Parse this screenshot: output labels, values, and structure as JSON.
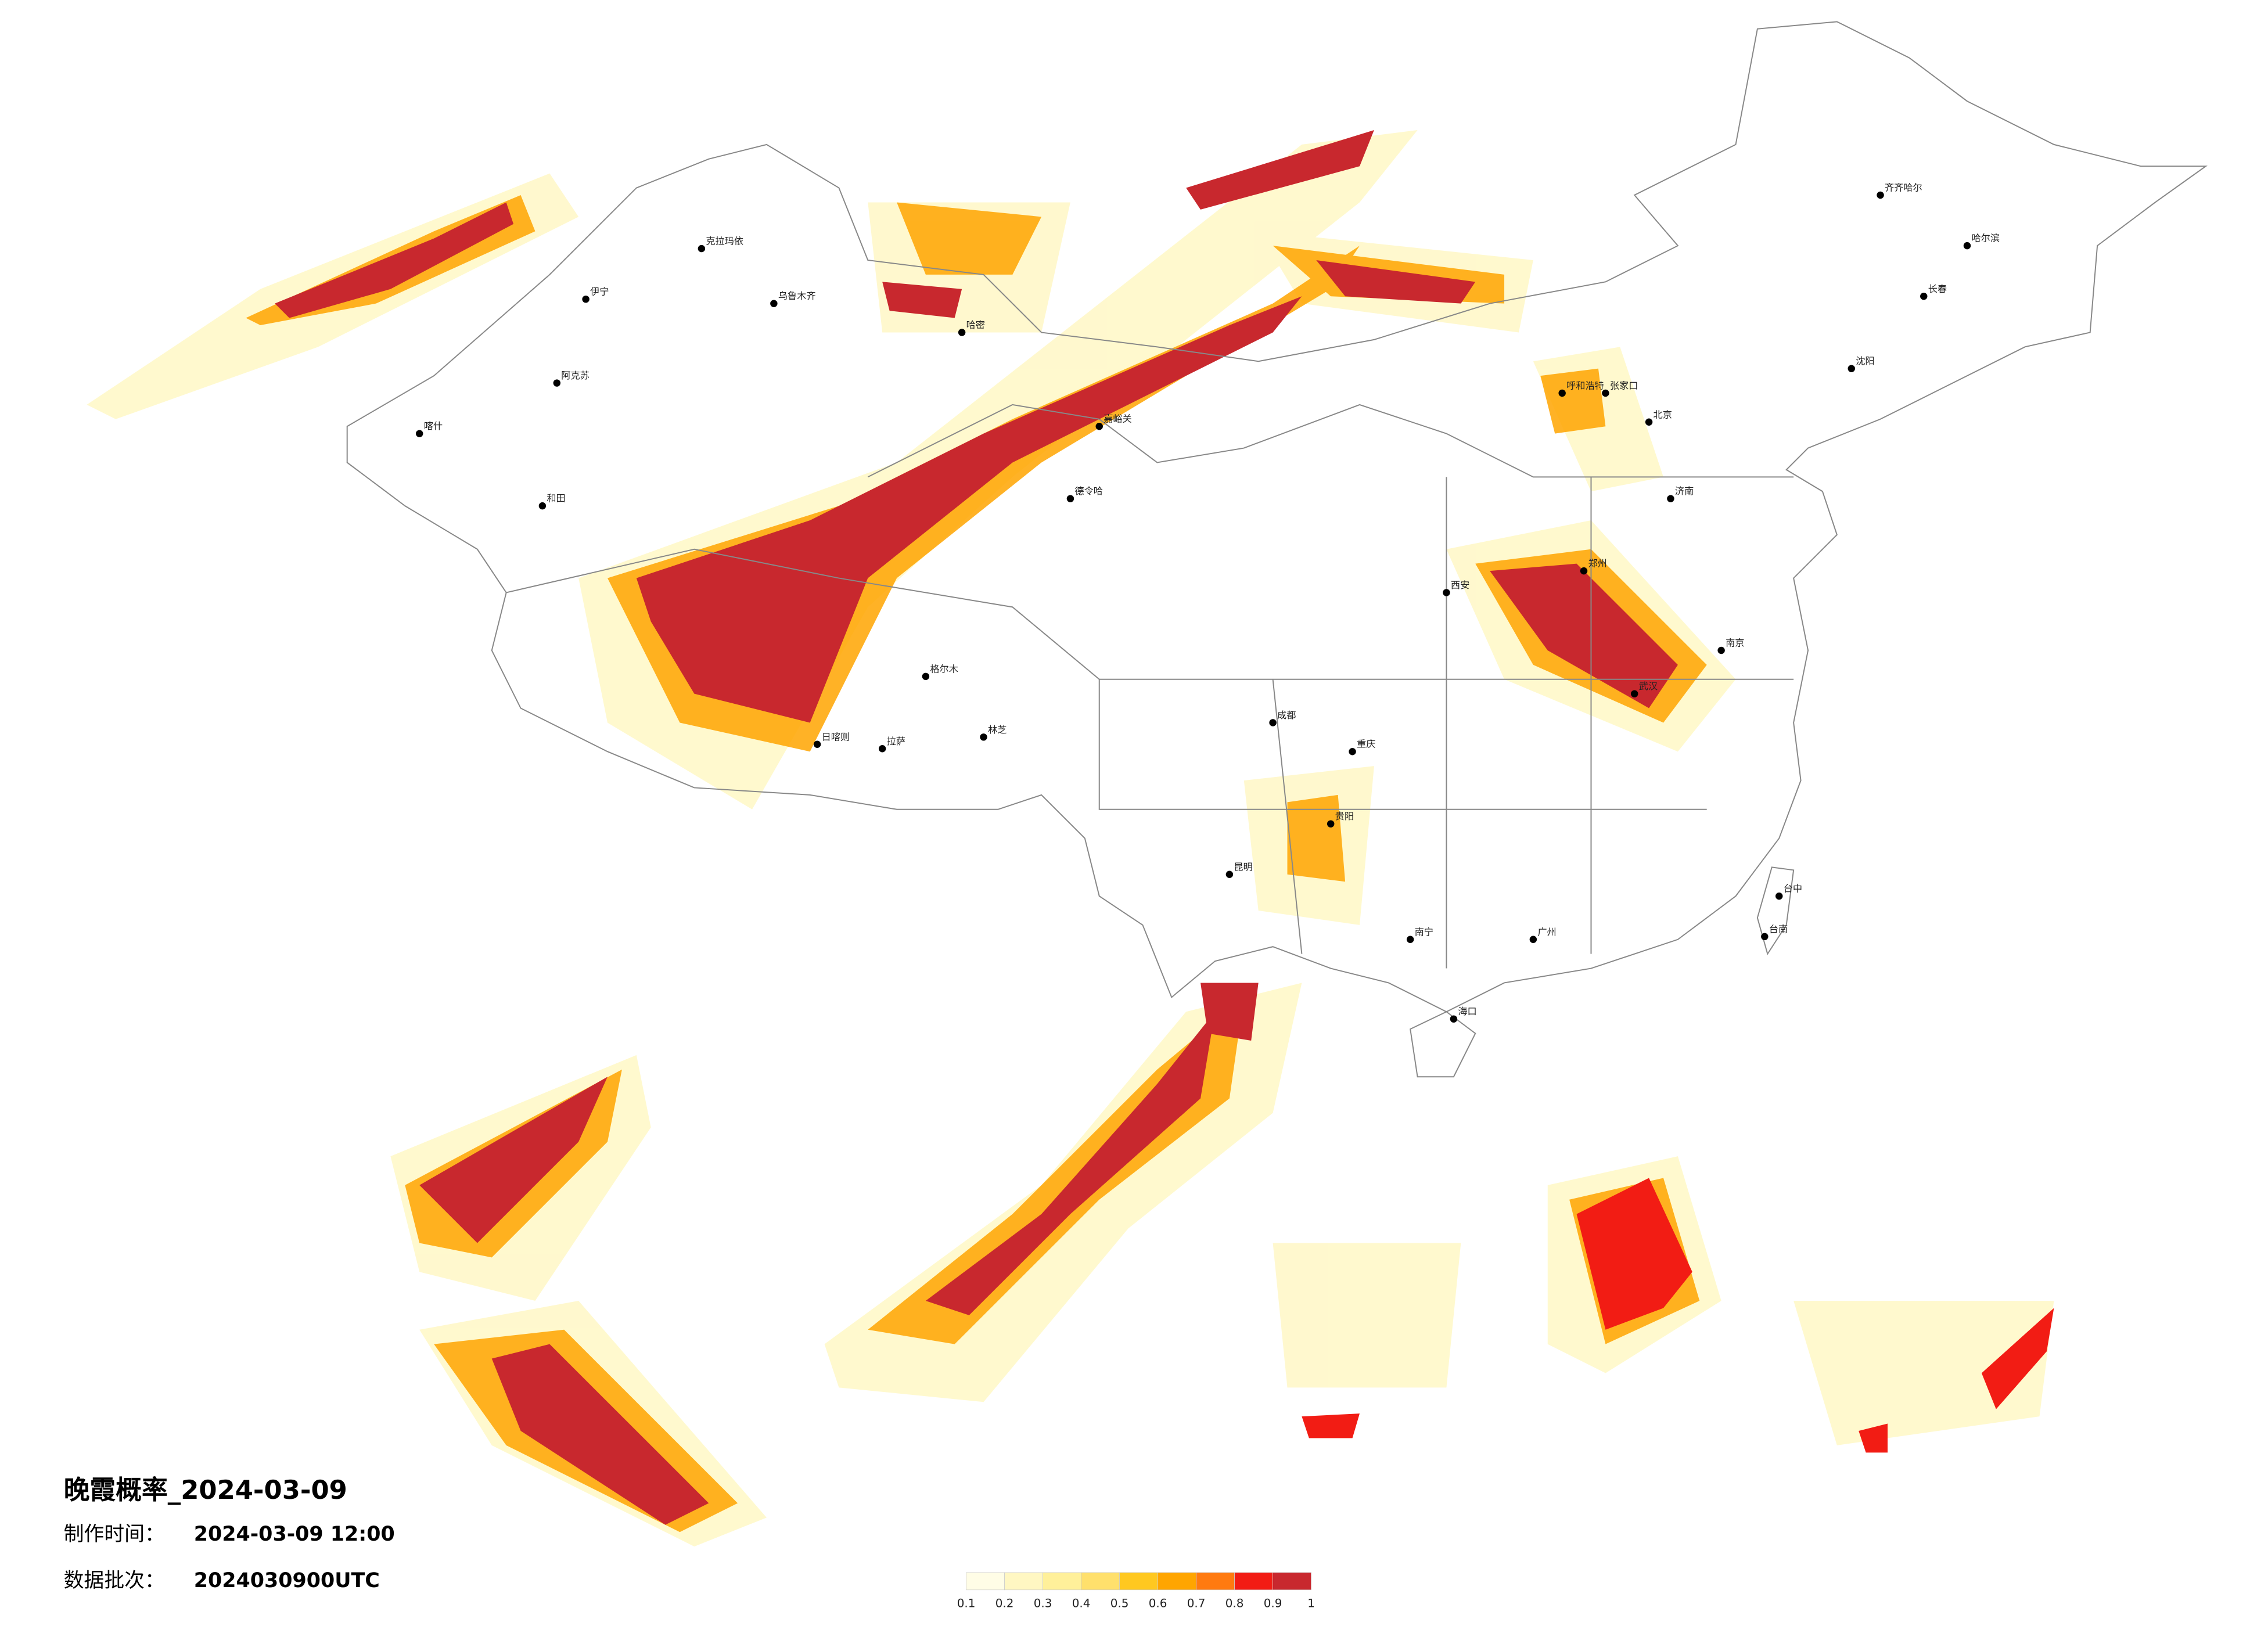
{
  "title": "晚霞概率_2024-03-09",
  "production_time": {
    "label": "制作时间：",
    "value": "2024-03-09 12:00"
  },
  "data_batch": {
    "label": "数据批次：",
    "value": "2024030900UTC"
  },
  "legend": {
    "ticks": [
      0.1,
      0.2,
      0.3,
      0.4,
      0.5,
      0.6,
      0.7,
      0.8,
      0.9,
      1
    ],
    "colors": [
      "#fffde6",
      "#fff7c2",
      "#fff09a",
      "#ffe06c",
      "#ffc820",
      "#ffa500",
      "#ff7a10",
      "#f21c14",
      "#c8282e"
    ]
  },
  "cities": [
    "克拉玛依",
    "伊宁",
    "乌鲁木齐",
    "阿克苏",
    "喀什",
    "和田",
    "哈密",
    "嘉峪关",
    "德令哈",
    "格尔木",
    "日喀则",
    "拉萨",
    "林芝",
    "呼和浩特",
    "张家口",
    "北京",
    "齐齐哈尔",
    "哈尔滨",
    "长春",
    "沈阳",
    "济南",
    "郑州",
    "武汉",
    "南京",
    "西安",
    "成都",
    "重庆",
    "昆明",
    "贵阳",
    "南宁",
    "广州",
    "海口",
    "台中",
    "台南"
  ]
}
